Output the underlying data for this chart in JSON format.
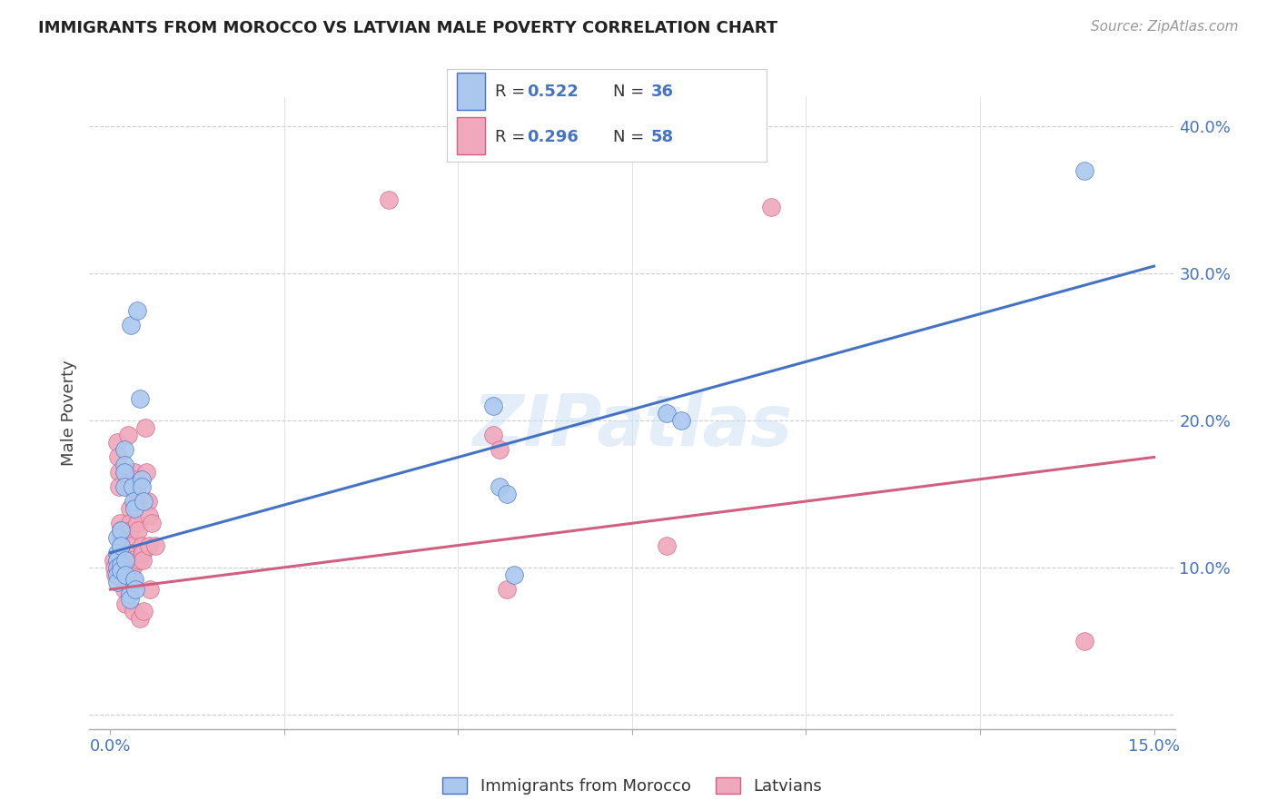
{
  "title": "IMMIGRANTS FROM MOROCCO VS LATVIAN MALE POVERTY CORRELATION CHART",
  "source": "Source: ZipAtlas.com",
  "ylabel": "Male Poverty",
  "legend_label_blue": "Immigrants from Morocco",
  "legend_label_pink": "Latvians",
  "r_blue_val": "0.522",
  "n_blue_val": "36",
  "r_pink_val": "0.296",
  "n_pink_val": "58",
  "color_blue": "#aac8ee",
  "color_pink": "#f0a8bc",
  "color_line_blue": "#4472c4",
  "color_line_pink": "#d06080",
  "watermark": "ZIPatlas",
  "blue_points": [
    [
      0.1,
      12.0
    ],
    [
      0.1,
      11.0
    ],
    [
      0.1,
      10.5
    ],
    [
      0.1,
      10.0
    ],
    [
      0.1,
      9.5
    ],
    [
      0.1,
      9.0
    ],
    [
      0.15,
      12.5
    ],
    [
      0.15,
      11.5
    ],
    [
      0.15,
      10.2
    ],
    [
      0.15,
      9.8
    ],
    [
      0.2,
      18.0
    ],
    [
      0.2,
      17.0
    ],
    [
      0.2,
      16.5
    ],
    [
      0.2,
      15.5
    ],
    [
      0.22,
      10.5
    ],
    [
      0.22,
      9.5
    ],
    [
      0.28,
      8.2
    ],
    [
      0.28,
      7.8
    ],
    [
      0.3,
      26.5
    ],
    [
      0.32,
      15.5
    ],
    [
      0.33,
      14.5
    ],
    [
      0.35,
      14.0
    ],
    [
      0.35,
      9.2
    ],
    [
      0.36,
      8.5
    ],
    [
      0.38,
      27.5
    ],
    [
      0.42,
      21.5
    ],
    [
      0.45,
      16.0
    ],
    [
      0.45,
      15.5
    ],
    [
      0.48,
      14.5
    ],
    [
      5.5,
      21.0
    ],
    [
      5.6,
      15.5
    ],
    [
      5.7,
      15.0
    ],
    [
      5.8,
      9.5
    ],
    [
      8.0,
      20.5
    ],
    [
      8.2,
      20.0
    ],
    [
      14.0,
      37.0
    ]
  ],
  "pink_points": [
    [
      0.05,
      10.5
    ],
    [
      0.06,
      10.0
    ],
    [
      0.07,
      9.5
    ],
    [
      0.1,
      18.5
    ],
    [
      0.11,
      17.5
    ],
    [
      0.12,
      16.5
    ],
    [
      0.13,
      15.5
    ],
    [
      0.14,
      13.0
    ],
    [
      0.15,
      12.5
    ],
    [
      0.15,
      12.0
    ],
    [
      0.16,
      11.5
    ],
    [
      0.17,
      11.0
    ],
    [
      0.18,
      10.5
    ],
    [
      0.19,
      10.0
    ],
    [
      0.2,
      9.5
    ],
    [
      0.2,
      9.0
    ],
    [
      0.21,
      8.5
    ],
    [
      0.22,
      7.5
    ],
    [
      0.25,
      19.0
    ],
    [
      0.26,
      16.0
    ],
    [
      0.27,
      15.5
    ],
    [
      0.28,
      14.0
    ],
    [
      0.28,
      13.0
    ],
    [
      0.29,
      12.5
    ],
    [
      0.3,
      11.5
    ],
    [
      0.3,
      11.0
    ],
    [
      0.31,
      10.5
    ],
    [
      0.32,
      10.0
    ],
    [
      0.33,
      9.0
    ],
    [
      0.34,
      7.0
    ],
    [
      0.35,
      16.5
    ],
    [
      0.36,
      16.0
    ],
    [
      0.37,
      15.5
    ],
    [
      0.38,
      15.0
    ],
    [
      0.38,
      14.5
    ],
    [
      0.39,
      13.0
    ],
    [
      0.4,
      12.5
    ],
    [
      0.41,
      10.5
    ],
    [
      0.42,
      6.5
    ],
    [
      0.45,
      11.5
    ],
    [
      0.46,
      11.0
    ],
    [
      0.47,
      10.5
    ],
    [
      0.48,
      7.0
    ],
    [
      0.5,
      19.5
    ],
    [
      0.52,
      16.5
    ],
    [
      0.54,
      14.5
    ],
    [
      0.55,
      13.5
    ],
    [
      0.56,
      11.5
    ],
    [
      0.57,
      8.5
    ],
    [
      0.6,
      13.0
    ],
    [
      0.65,
      11.5
    ],
    [
      4.0,
      35.0
    ],
    [
      5.5,
      19.0
    ],
    [
      5.6,
      18.0
    ],
    [
      5.7,
      8.5
    ],
    [
      8.0,
      11.5
    ],
    [
      9.5,
      34.5
    ],
    [
      14.0,
      5.0
    ]
  ],
  "blue_line_x": [
    0.0,
    15.0
  ],
  "blue_line_y": [
    11.0,
    30.5
  ],
  "pink_line_x": [
    0.0,
    15.0
  ],
  "pink_line_y": [
    8.5,
    17.5
  ],
  "xlim": [
    -0.3,
    15.3
  ],
  "ylim": [
    -1.0,
    42.0
  ],
  "ytick_positions": [
    0,
    10,
    20,
    30,
    40
  ],
  "ytick_labels": [
    "",
    "10.0%",
    "20.0%",
    "30.0%",
    "40.0%"
  ],
  "xtick_minor_positions": [
    0,
    2.5,
    5.0,
    7.5,
    10.0,
    12.5,
    15.0
  ]
}
